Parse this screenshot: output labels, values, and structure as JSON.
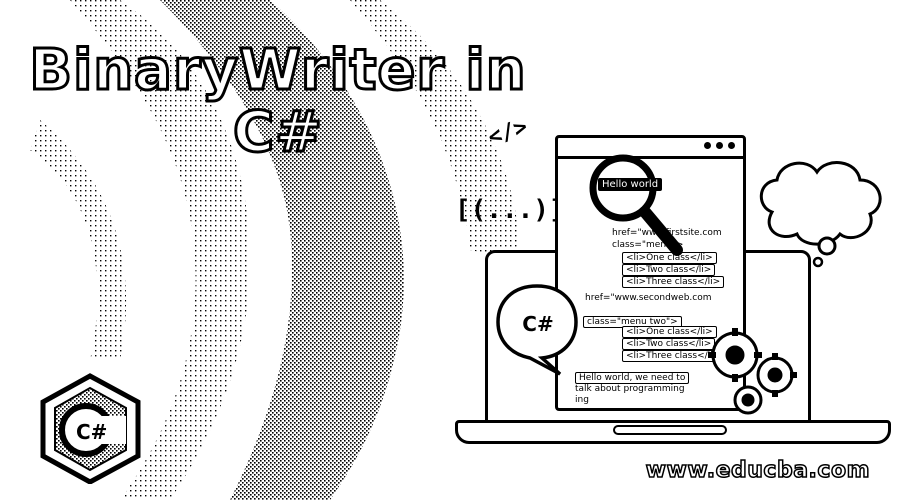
{
  "title": {
    "line1": "BinaryWriter in",
    "line2": "C#"
  },
  "symbols": {
    "code_tag": "</>",
    "brackets": "[(...)]"
  },
  "browser": {
    "hello_world": "Hello world",
    "lines": [
      "href=\"www.firstsite.com",
      "class=\"menu\">",
      "<li>One class</li>",
      "<li>Two class</li>",
      "<li>Three class</li>",
      "href=\"www.secondweb.com",
      "class=\"menu two\">",
      "<li>One class</li>",
      "<li>Two class</li>",
      "<li>Three class</li>"
    ],
    "message_line1": "Hello world, we need to",
    "message_line2": "talk about programming",
    "message_line3": "ing"
  },
  "bubble": {
    "label": "C#"
  },
  "logo": {
    "label": "C#"
  },
  "watermark": "www.educba.com",
  "colors": {
    "ink": "#000000",
    "paper": "#ffffff"
  }
}
